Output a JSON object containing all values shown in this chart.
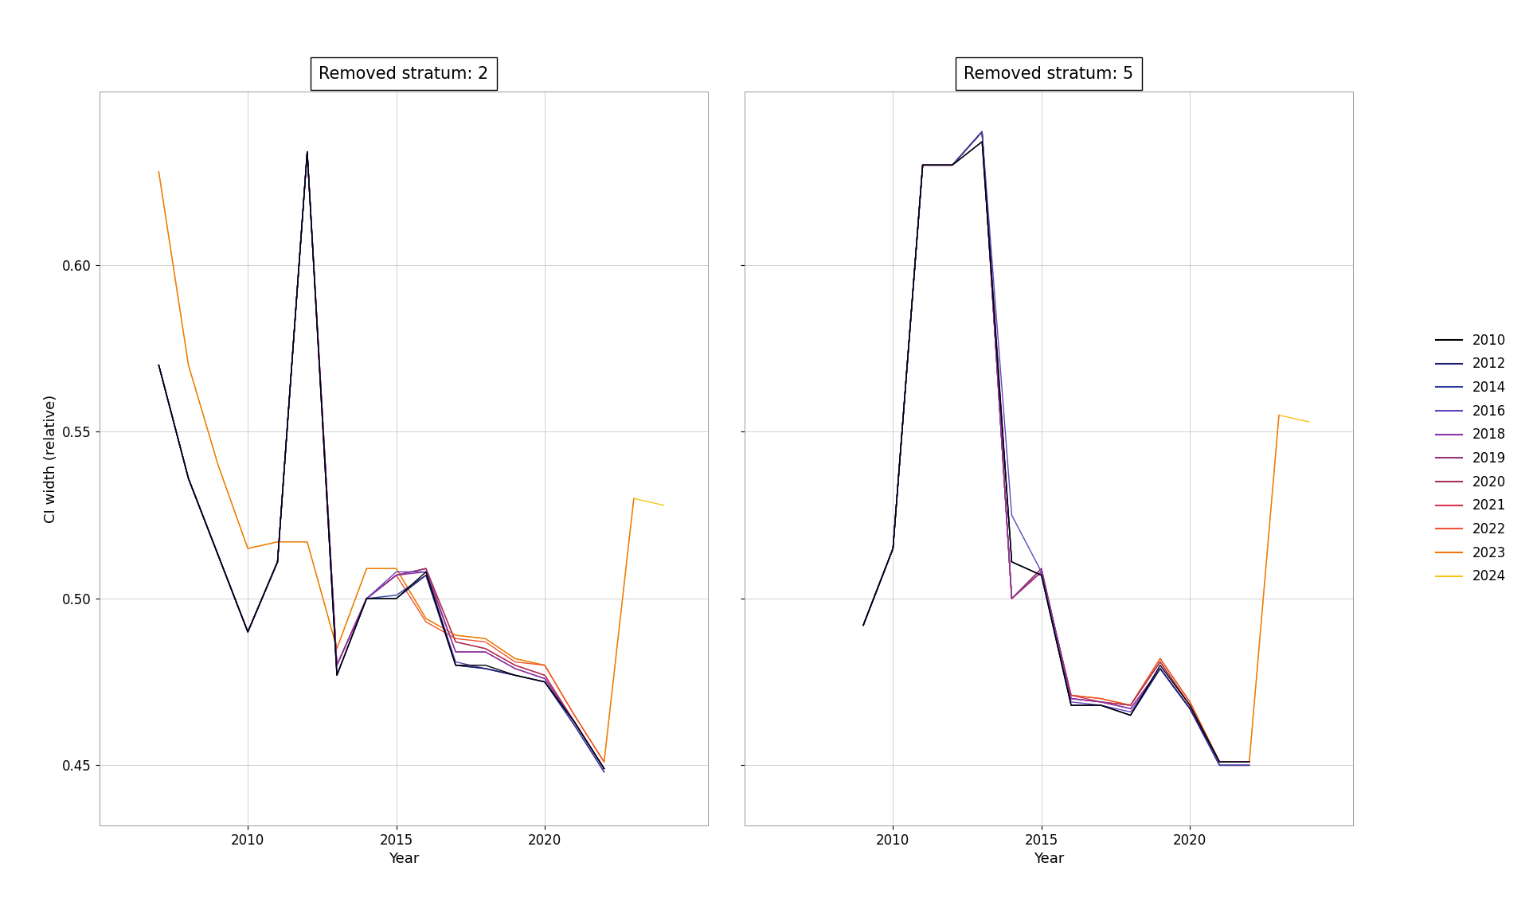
{
  "title_left": "Removed stratum: 2",
  "title_right": "Removed stratum: 5",
  "ylabel": "CI width (relative)",
  "xlabel": "Year",
  "ylim": [
    0.432,
    0.652
  ],
  "yticks": [
    0.45,
    0.5,
    0.55,
    0.6
  ],
  "ytick_labels": [
    "0.45",
    "0.50",
    "0.55",
    "0.60"
  ],
  "xticks": [
    2010,
    2015,
    2020
  ],
  "legend_years": [
    "2010",
    "2012",
    "2014",
    "2016",
    "2018",
    "2019",
    "2020",
    "2021",
    "2022",
    "2023",
    "2024"
  ],
  "colors": {
    "2010": "#000000",
    "2012": "#1a1a6e",
    "2014": "#2e3fa0",
    "2016": "#6644bb",
    "2018": "#8833aa",
    "2019": "#993377",
    "2020": "#aa3355",
    "2021": "#dd3355",
    "2022": "#ee5533",
    "2023": "#ee7711",
    "2024": "#f5c518"
  },
  "panel1": {
    "2010": {
      "x": [
        2007,
        2008,
        2009,
        2010,
        2011,
        2012,
        2013,
        2014,
        2015,
        2016,
        2017,
        2018,
        2019,
        2020,
        2021,
        2022
      ],
      "y": [
        0.57,
        0.536,
        0.513,
        0.49,
        0.511,
        0.634,
        0.477,
        0.5,
        0.5,
        0.508,
        0.48,
        0.48,
        0.477,
        0.475,
        0.463,
        0.449
      ]
    },
    "2012": {
      "x": [
        2007,
        2008,
        2009,
        2010,
        2011,
        2012,
        2013,
        2014,
        2015,
        2016,
        2017,
        2018,
        2019,
        2020,
        2021,
        2022
      ],
      "y": [
        0.57,
        0.536,
        0.513,
        0.49,
        0.511,
        0.634,
        0.477,
        0.5,
        0.5,
        0.507,
        0.48,
        0.479,
        0.477,
        0.475,
        0.463,
        0.449
      ]
    },
    "2014": {
      "x": [
        2007,
        2008,
        2009,
        2010,
        2011,
        2012,
        2013,
        2014,
        2015,
        2016,
        2017,
        2018,
        2019,
        2020,
        2021,
        2022
      ],
      "y": [
        0.57,
        0.536,
        0.513,
        0.49,
        0.511,
        0.634,
        0.477,
        0.5,
        0.501,
        0.507,
        0.48,
        0.479,
        0.477,
        0.475,
        0.462,
        0.448
      ]
    },
    "2016": {
      "x": [
        2007,
        2008,
        2009,
        2010,
        2011,
        2012,
        2013,
        2014,
        2015,
        2016,
        2017,
        2018,
        2019,
        2020,
        2021,
        2022
      ],
      "y": [
        0.57,
        0.536,
        0.513,
        0.49,
        0.511,
        0.634,
        0.477,
        0.5,
        0.508,
        0.508,
        0.481,
        0.479,
        0.477,
        0.475,
        0.462,
        0.448
      ]
    },
    "2018": {
      "x": [
        2007,
        2008,
        2009,
        2010,
        2011,
        2012,
        2013,
        2014,
        2015,
        2016,
        2017,
        2018,
        2019,
        2020,
        2021,
        2022
      ],
      "y": [
        0.57,
        0.536,
        0.513,
        0.49,
        0.511,
        0.634,
        0.48,
        0.5,
        0.507,
        0.508,
        0.484,
        0.484,
        0.479,
        0.476,
        0.463,
        0.449
      ]
    },
    "2019": {
      "x": [
        2007,
        2008,
        2009,
        2010,
        2011,
        2012,
        2013,
        2014,
        2015,
        2016,
        2017,
        2018,
        2019,
        2020,
        2021,
        2022
      ],
      "y": [
        0.57,
        0.536,
        0.513,
        0.49,
        0.511,
        0.634,
        0.48,
        0.5,
        0.507,
        0.509,
        0.484,
        0.484,
        0.479,
        0.476,
        0.463,
        0.449
      ]
    },
    "2020": {
      "x": [
        2007,
        2008,
        2009,
        2010,
        2011,
        2012,
        2013,
        2014,
        2015,
        2016,
        2017,
        2018,
        2019,
        2020,
        2021,
        2022
      ],
      "y": [
        0.57,
        0.536,
        0.513,
        0.49,
        0.511,
        0.634,
        0.48,
        0.5,
        0.507,
        0.509,
        0.487,
        0.485,
        0.48,
        0.477,
        0.463,
        0.449
      ]
    },
    "2021": {
      "x": [
        2007,
        2008,
        2009,
        2010,
        2011,
        2012,
        2013,
        2014,
        2015,
        2016,
        2017,
        2018,
        2019,
        2020,
        2021,
        2022
      ],
      "y": [
        0.57,
        0.536,
        0.513,
        0.49,
        0.511,
        0.634,
        0.48,
        0.5,
        0.507,
        0.509,
        0.487,
        0.485,
        0.48,
        0.477,
        0.463,
        0.449
      ]
    },
    "2022": {
      "x": [
        2007,
        2008,
        2009,
        2010,
        2011,
        2012,
        2013,
        2014,
        2015,
        2016,
        2017,
        2018,
        2019,
        2020,
        2021,
        2022
      ],
      "y": [
        0.57,
        0.536,
        0.513,
        0.49,
        0.511,
        0.634,
        0.48,
        0.5,
        0.507,
        0.493,
        0.488,
        0.487,
        0.481,
        0.48,
        0.465,
        0.451
      ]
    },
    "2023": {
      "x": [
        2007,
        2008,
        2009,
        2010,
        2011,
        2012,
        2013,
        2014,
        2015,
        2016,
        2017,
        2018,
        2019,
        2020,
        2021,
        2022,
        2023
      ],
      "y": [
        0.628,
        0.57,
        0.54,
        0.515,
        0.517,
        0.517,
        0.485,
        0.509,
        0.509,
        0.494,
        0.489,
        0.488,
        0.482,
        0.48,
        0.465,
        0.451,
        0.53
      ]
    },
    "2024": {
      "x": [
        2007,
        2008,
        2009,
        2010,
        2011,
        2012,
        2013,
        2014,
        2015,
        2016,
        2017,
        2018,
        2019,
        2020,
        2021,
        2022,
        2023,
        2024
      ],
      "y": [
        0.628,
        0.57,
        0.54,
        0.515,
        0.517,
        0.517,
        0.485,
        0.509,
        0.509,
        0.494,
        0.489,
        0.488,
        0.482,
        0.48,
        0.465,
        0.451,
        0.53,
        0.528
      ]
    }
  },
  "panel2": {
    "2010": {
      "x": [
        2009,
        2010,
        2011,
        2012,
        2013,
        2014,
        2015,
        2016,
        2017,
        2018,
        2019,
        2020,
        2021,
        2022
      ],
      "y": [
        0.492,
        0.515,
        0.63,
        0.63,
        0.637,
        0.511,
        0.507,
        0.468,
        0.468,
        0.465,
        0.48,
        0.468,
        0.451,
        0.451
      ]
    },
    "2012": {
      "x": [
        2009,
        2010,
        2011,
        2012,
        2013,
        2014,
        2015,
        2016,
        2017,
        2018,
        2019,
        2020,
        2021,
        2022
      ],
      "y": [
        0.492,
        0.515,
        0.63,
        0.63,
        0.637,
        0.511,
        0.507,
        0.468,
        0.468,
        0.465,
        0.479,
        0.467,
        0.451,
        0.451
      ]
    },
    "2014": {
      "x": [
        2009,
        2010,
        2011,
        2012,
        2013,
        2014,
        2015,
        2016,
        2017,
        2018,
        2019,
        2020,
        2021,
        2022
      ],
      "y": [
        0.492,
        0.515,
        0.63,
        0.63,
        0.64,
        0.511,
        0.507,
        0.468,
        0.468,
        0.465,
        0.479,
        0.467,
        0.45,
        0.45
      ]
    },
    "2016": {
      "x": [
        2009,
        2010,
        2011,
        2012,
        2013,
        2014,
        2015,
        2016,
        2017,
        2018,
        2019,
        2020,
        2021,
        2022
      ],
      "y": [
        0.492,
        0.515,
        0.63,
        0.63,
        0.64,
        0.525,
        0.508,
        0.469,
        0.468,
        0.466,
        0.479,
        0.467,
        0.45,
        0.45
      ]
    },
    "2018": {
      "x": [
        2009,
        2010,
        2011,
        2012,
        2013,
        2014,
        2015,
        2016,
        2017,
        2018,
        2019,
        2020,
        2021,
        2022
      ],
      "y": [
        0.492,
        0.515,
        0.63,
        0.63,
        0.64,
        0.5,
        0.508,
        0.47,
        0.469,
        0.467,
        0.479,
        0.467,
        0.45,
        0.45
      ]
    },
    "2019": {
      "x": [
        2009,
        2010,
        2011,
        2012,
        2013,
        2014,
        2015,
        2016,
        2017,
        2018,
        2019,
        2020,
        2021,
        2022
      ],
      "y": [
        0.492,
        0.515,
        0.63,
        0.63,
        0.64,
        0.5,
        0.509,
        0.47,
        0.469,
        0.467,
        0.479,
        0.467,
        0.45,
        0.45
      ]
    },
    "2020": {
      "x": [
        2009,
        2010,
        2011,
        2012,
        2013,
        2014,
        2015,
        2016,
        2017,
        2018,
        2019,
        2020,
        2021,
        2022
      ],
      "y": [
        0.492,
        0.515,
        0.63,
        0.63,
        0.64,
        0.5,
        0.509,
        0.47,
        0.469,
        0.468,
        0.481,
        0.468,
        0.451,
        0.451
      ]
    },
    "2021": {
      "x": [
        2009,
        2010,
        2011,
        2012,
        2013,
        2014,
        2015,
        2016,
        2017,
        2018,
        2019,
        2020,
        2021,
        2022
      ],
      "y": [
        0.492,
        0.515,
        0.63,
        0.63,
        0.64,
        0.5,
        0.508,
        0.471,
        0.469,
        0.468,
        0.481,
        0.468,
        0.451,
        0.451
      ]
    },
    "2022": {
      "x": [
        2009,
        2010,
        2011,
        2012,
        2013,
        2014,
        2015,
        2016,
        2017,
        2018,
        2019,
        2020,
        2021,
        2022
      ],
      "y": [
        0.492,
        0.515,
        0.63,
        0.63,
        0.64,
        0.5,
        0.508,
        0.471,
        0.47,
        0.468,
        0.482,
        0.469,
        0.451,
        0.451
      ]
    },
    "2023": {
      "x": [
        2009,
        2010,
        2011,
        2012,
        2013,
        2014,
        2015,
        2016,
        2017,
        2018,
        2019,
        2020,
        2021,
        2022,
        2023
      ],
      "y": [
        0.492,
        0.515,
        0.63,
        0.63,
        0.64,
        0.5,
        0.508,
        0.471,
        0.47,
        0.468,
        0.482,
        0.469,
        0.451,
        0.451,
        0.555
      ]
    },
    "2024": {
      "x": [
        2009,
        2010,
        2011,
        2012,
        2013,
        2014,
        2015,
        2016,
        2017,
        2018,
        2019,
        2020,
        2021,
        2022,
        2023,
        2024
      ],
      "y": [
        0.492,
        0.515,
        0.63,
        0.63,
        0.64,
        0.5,
        0.508,
        0.471,
        0.47,
        0.468,
        0.482,
        0.469,
        0.451,
        0.451,
        0.555,
        0.553
      ]
    }
  }
}
